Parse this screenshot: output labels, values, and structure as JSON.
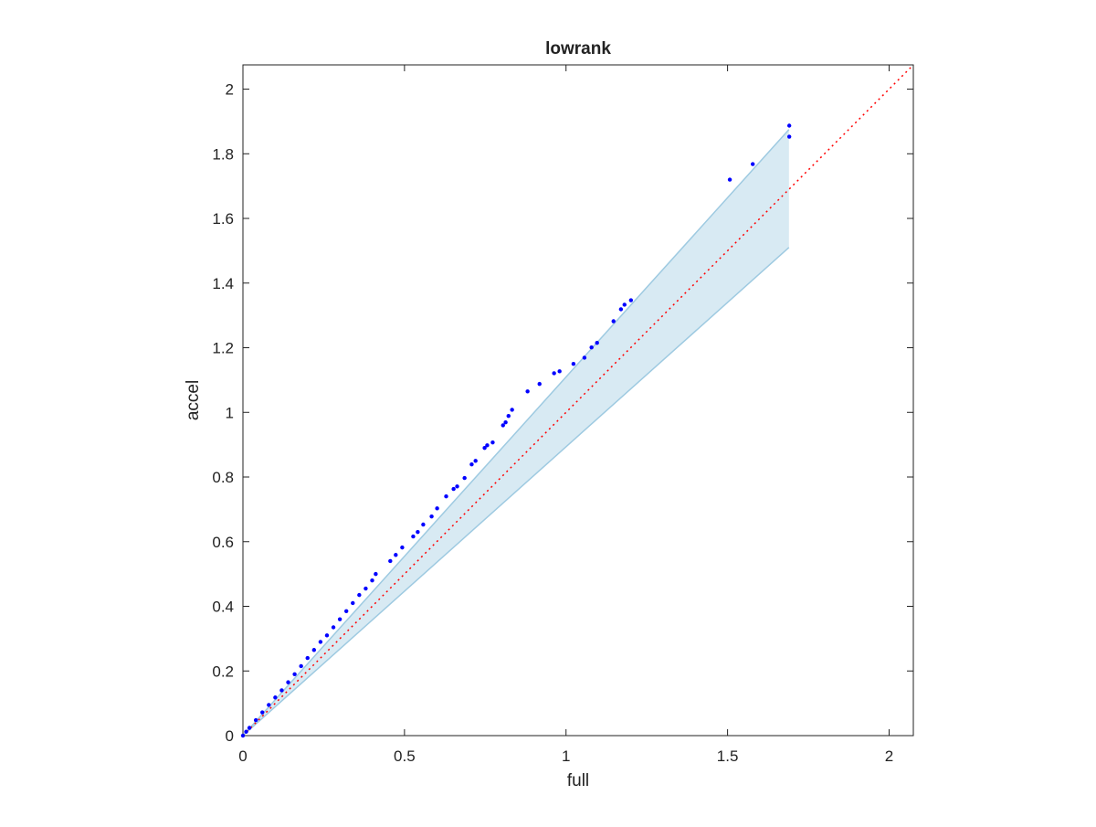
{
  "chart_data": {
    "type": "scatter",
    "title": "lowrank",
    "x_label": "full",
    "y_label": "accel",
    "xlim": [
      0,
      2.075
    ],
    "ylim": [
      0,
      2.075
    ],
    "xticks": [
      0,
      0.5,
      1,
      1.5,
      2
    ],
    "yticks": [
      0,
      0.2,
      0.4,
      0.6,
      0.8,
      1,
      1.2,
      1.4,
      1.6,
      1.8,
      2
    ],
    "grid": false,
    "series": [
      {
        "color": "#0000ff",
        "x": [
          0,
          0.01,
          0.02,
          0.04,
          0.06,
          0.08,
          0.1,
          0.12,
          0.14,
          0.16,
          0.18,
          0.2,
          0.22,
          0.24,
          0.26,
          0.28,
          0.3,
          0.32,
          0.34,
          0.36,
          0.38,
          0.4,
          0.411,
          0.456,
          0.473,
          0.493,
          0.527,
          0.541,
          0.558,
          0.584,
          0.601,
          0.629,
          0.652,
          0.663,
          0.686,
          0.708,
          0.72,
          0.748,
          0.756,
          0.773,
          0.805,
          0.813,
          0.822,
          0.833,
          0.881,
          0.918,
          0.963,
          0.98,
          1.023,
          1.057,
          1.079,
          1.096,
          1.147,
          1.17,
          1.181,
          1.201,
          1.507,
          1.578,
          1.691,
          1.691
        ],
        "y": [
          0,
          0.012,
          0.024,
          0.048,
          0.072,
          0.095,
          0.118,
          0.14,
          0.165,
          0.19,
          0.215,
          0.24,
          0.265,
          0.29,
          0.31,
          0.335,
          0.36,
          0.385,
          0.41,
          0.435,
          0.455,
          0.48,
          0.5,
          0.54,
          0.559,
          0.582,
          0.616,
          0.63,
          0.653,
          0.678,
          0.703,
          0.74,
          0.763,
          0.771,
          0.797,
          0.839,
          0.85,
          0.89,
          0.898,
          0.907,
          0.96,
          0.969,
          0.989,
          1.008,
          1.065,
          1.088,
          1.121,
          1.127,
          1.15,
          1.169,
          1.201,
          1.215,
          1.282,
          1.319,
          1.333,
          1.347,
          1.72,
          1.768,
          1.853,
          1.887
        ]
      }
    ],
    "band": {
      "color": "#9ecae1",
      "x": [
        0,
        1.69
      ],
      "upper": [
        0,
        1.875
      ],
      "lower": [
        0,
        1.51
      ]
    },
    "reference_line": {
      "color": "#ff0000",
      "x": [
        0,
        2.075
      ],
      "y": [
        0,
        2.075
      ]
    }
  }
}
